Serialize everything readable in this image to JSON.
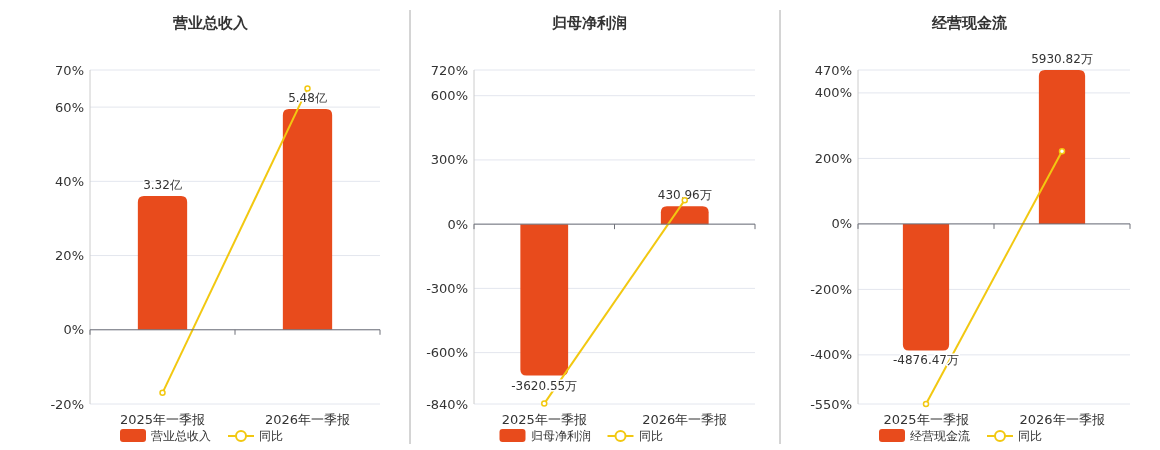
{
  "chart_data": [
    {
      "type": "bar",
      "title": "营业总收入",
      "categories": [
        "2025年一季报",
        "2026年一季报"
      ],
      "series": [
        {
          "name": "营业总收入",
          "color": "#e84b1c",
          "axis": "y2",
          "values": [
            3.32,
            5.48
          ],
          "value_labels": [
            "3.32亿",
            "5.48亿"
          ]
        },
        {
          "name": "同比",
          "type": "line",
          "color": "#f2c811",
          "values": [
            -17,
            65
          ]
        }
      ],
      "ylim": [
        -20,
        70
      ],
      "yticks": [
        {
          "value": -20,
          "label": "-20%"
        },
        {
          "value": 0,
          "label": "0%"
        },
        {
          "value": 20,
          "label": "20%"
        },
        {
          "value": 40,
          "label": "40%"
        },
        {
          "value": 60,
          "label": "60%"
        },
        {
          "value": 70,
          "label": "70%"
        }
      ],
      "y2lim": [
        -1.84,
        6.45
      ],
      "grid": "y",
      "legend": "bottom",
      "marker": "circle"
    },
    {
      "type": "bar",
      "title": "归母净利润",
      "categories": [
        "2025年一季报",
        "2026年一季报"
      ],
      "series": [
        {
          "name": "归母净利润",
          "color": "#e84b1c",
          "axis": "y2",
          "values": [
            -3620.55,
            430.96
          ],
          "value_labels": [
            "-3620.55万",
            "430.96万"
          ]
        },
        {
          "name": "同比",
          "type": "line",
          "color": "#f2c811",
          "values": [
            -838,
            112
          ]
        }
      ],
      "ylim": [
        -840,
        720
      ],
      "yticks": [
        {
          "value": -840,
          "label": "-840%"
        },
        {
          "value": -600,
          "label": "-600%"
        },
        {
          "value": -300,
          "label": "-300%"
        },
        {
          "value": 0,
          "label": "0%"
        },
        {
          "value": 300,
          "label": "300%"
        },
        {
          "value": 600,
          "label": "600%"
        },
        {
          "value": 720,
          "label": "720%"
        }
      ],
      "y2lim": [
        -4301,
        3687
      ],
      "grid": "y",
      "legend": "bottom",
      "marker": "circle"
    },
    {
      "type": "bar",
      "title": "经营现金流",
      "categories": [
        "2025年一季报",
        "2026年一季报"
      ],
      "series": [
        {
          "name": "经营现金流",
          "color": "#e84b1c",
          "axis": "y2",
          "values": [
            -4876.47,
            5930.82
          ],
          "value_labels": [
            "-4876.47万",
            "5930.82万"
          ]
        },
        {
          "name": "同比",
          "type": "line",
          "color": "#f2c811",
          "values": [
            -550,
            222
          ]
        }
      ],
      "ylim": [
        -550,
        470
      ],
      "yticks": [
        {
          "value": -550,
          "label": "-550%"
        },
        {
          "value": -400,
          "label": "-400%"
        },
        {
          "value": -200,
          "label": "-200%"
        },
        {
          "value": 0,
          "label": "0%"
        },
        {
          "value": 200,
          "label": "200%"
        },
        {
          "value": 400,
          "label": "400%"
        },
        {
          "value": 470,
          "label": "470%"
        }
      ],
      "y2lim": [
        -6940,
        5930.82
      ],
      "grid": "y",
      "legend": "bottom",
      "marker": "circle"
    }
  ]
}
